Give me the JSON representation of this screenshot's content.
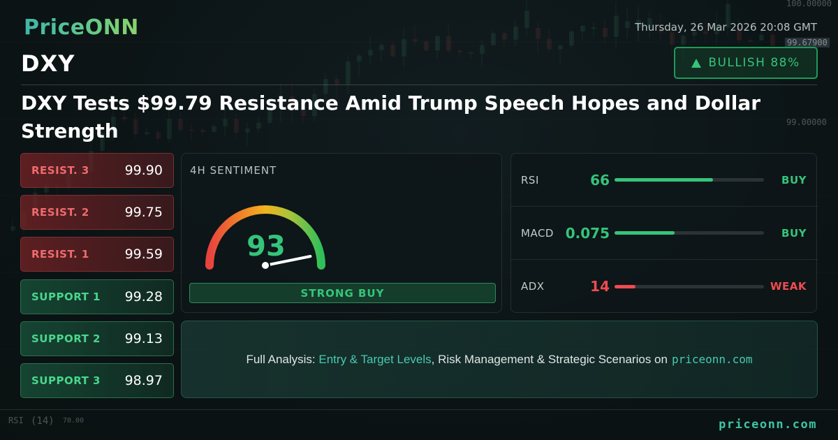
{
  "brand": {
    "logo_text": "PriceONN",
    "footer_site": "priceonn.com"
  },
  "header": {
    "datetime": "Thursday, 26 Mar 2026 20:08 GMT",
    "ticker": "DXY",
    "bias_label": "BULLISH 88%",
    "bias_icon": "up-triangle-icon",
    "headline": "DXY Tests $99.79 Resistance Amid Trump Speech Hopes and Dollar Strength"
  },
  "levels": [
    {
      "label": "RESIST. 3",
      "value": "99.90",
      "kind": "resistance"
    },
    {
      "label": "RESIST. 2",
      "value": "99.75",
      "kind": "resistance"
    },
    {
      "label": "RESIST. 1",
      "value": "99.59",
      "kind": "resistance"
    },
    {
      "label": "SUPPORT 1",
      "value": "99.28",
      "kind": "support"
    },
    {
      "label": "SUPPORT 2",
      "value": "99.13",
      "kind": "support"
    },
    {
      "label": "SUPPORT 3",
      "value": "98.97",
      "kind": "support"
    }
  ],
  "sentiment": {
    "title": "4H SENTIMENT",
    "score": "93",
    "score_fraction": 0.93,
    "signal": "STRONG BUY"
  },
  "indicators": [
    {
      "name": "RSI",
      "value": "66",
      "level": 0.66,
      "signal": "BUY",
      "color": "#35c47a"
    },
    {
      "name": "MACD",
      "value": "0.075",
      "level": 0.4,
      "signal": "BUY",
      "color": "#35c47a"
    },
    {
      "name": "ADX",
      "value": "14",
      "level": 0.14,
      "signal": "WEAK",
      "color": "#ef4b4f"
    }
  ],
  "cta": {
    "prefix": "Full Analysis: ",
    "highlight": "Entry & Target Levels",
    "middle": ", Risk Management & Strategic Scenarios on",
    "site": "priceonn.com"
  },
  "background_chart": {
    "price_labels": [
      "100.00000",
      "99.67900",
      "99.00000"
    ],
    "rsi_label": "RSI",
    "rsi_period": "(14)",
    "rsi_value": "70.00"
  },
  "colors": {
    "bull": "#35c47a",
    "bear": "#ef4b4f",
    "accent": "#48c9b0"
  }
}
